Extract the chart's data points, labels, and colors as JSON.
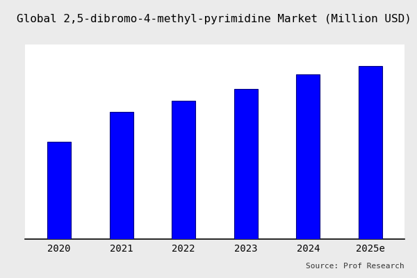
{
  "title": "Global 2,5-dibromo-4-methyl-pyrimidine Market (Million USD)",
  "categories": [
    "2020",
    "2021",
    "2022",
    "2023",
    "2024",
    "2025e"
  ],
  "values": [
    55,
    72,
    78,
    85,
    93,
    98
  ],
  "bar_color": "#0000ff",
  "bar_edgecolor": "#000080",
  "background_color": "#ebebeb",
  "plot_background_color": "#ffffff",
  "title_fontsize": 11.5,
  "source_text": "Source: Prof Research",
  "bar_width": 0.38,
  "ylim": [
    0,
    110
  ],
  "tick_fontsize": 10,
  "source_fontsize": 8
}
